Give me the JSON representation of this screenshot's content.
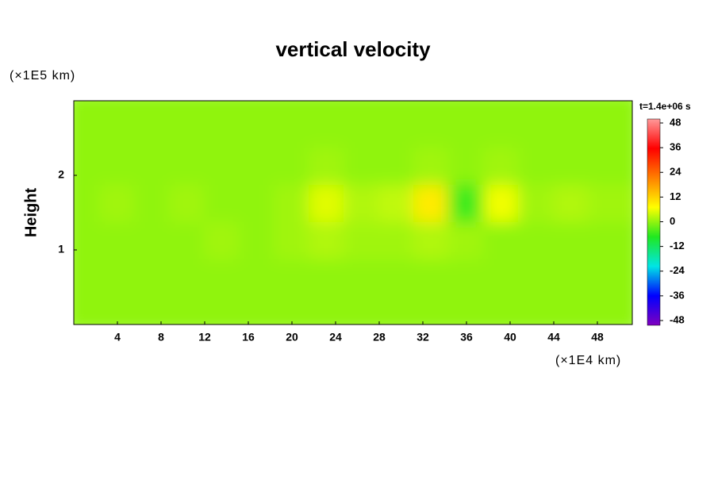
{
  "chart_data": {
    "type": "heatmap",
    "title": "vertical velocity",
    "ylabel": "Height",
    "yunit": "(×1E5 km)",
    "xunit": "(×1E4 km)",
    "colorbar_title": "t=1.4e+06 s",
    "xlim": [
      0,
      51.2
    ],
    "ylim": [
      0,
      3
    ],
    "xticks": [
      4,
      8,
      12,
      16,
      20,
      24,
      28,
      32,
      36,
      40,
      44,
      48
    ],
    "yticks": [
      1,
      2
    ],
    "zlim": [
      -48,
      48
    ],
    "zticks": [
      48,
      36,
      24,
      12,
      0,
      -12,
      -24,
      -36,
      -48
    ],
    "colormap": [
      "#7f00bf",
      "#0000ff",
      "#00e5e5",
      "#20e820",
      "#ffff00",
      "#ff8000",
      "#ff0000",
      "#ff9999"
    ],
    "x": [
      1.6,
      4.8,
      8,
      11.2,
      14.4,
      17.6,
      20.8,
      24,
      27.2,
      30.4,
      33.6,
      36.8,
      40,
      43.2,
      46.4,
      49.6
    ],
    "y": [
      0.25,
      0.75,
      1.25,
      1.75,
      2.25,
      2.75
    ],
    "z": [
      [
        0,
        0,
        0,
        0,
        0,
        0,
        0,
        0,
        0,
        0,
        0,
        0,
        0,
        0,
        0,
        0
      ],
      [
        0,
        0,
        0,
        0,
        0,
        0,
        0,
        0,
        0,
        0,
        0,
        0,
        0,
        0,
        0,
        0
      ],
      [
        0,
        0,
        0,
        0,
        1,
        0,
        1,
        2,
        1,
        1,
        2,
        1,
        0,
        0,
        0,
        0
      ],
      [
        0,
        1,
        0,
        1,
        0,
        0,
        1,
        5,
        2,
        3,
        9,
        -5,
        6,
        1,
        2,
        1
      ],
      [
        0,
        0,
        0,
        0,
        0,
        0,
        0,
        1,
        0,
        0,
        1,
        0,
        1,
        0,
        0,
        0
      ],
      [
        0,
        0,
        0,
        0,
        0,
        0,
        0,
        0,
        0,
        0,
        0,
        0,
        0,
        0,
        0,
        0
      ]
    ]
  }
}
